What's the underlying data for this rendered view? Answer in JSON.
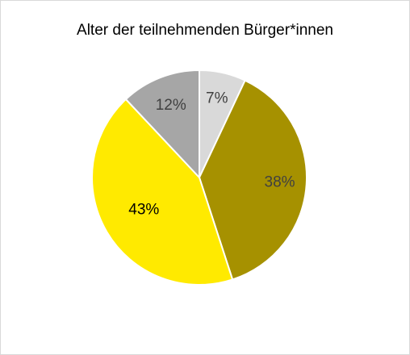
{
  "chart_data": {
    "type": "pie",
    "title": "Alter der teilnehmenden Bürger*innen",
    "slices": [
      {
        "label": "7%",
        "value": 7,
        "color": "#d9d9d9",
        "label_color": "#404040"
      },
      {
        "label": "38%",
        "value": 38,
        "color": "#a69100",
        "label_color": "#404040"
      },
      {
        "label": "43%",
        "value": 43,
        "color": "#ffea00",
        "label_color": "#000000"
      },
      {
        "label": "12%",
        "value": 12,
        "color": "#a6a6a6",
        "label_color": "#404040"
      }
    ],
    "start_angle_deg": 0,
    "direction": "clockwise",
    "legend": "none"
  }
}
